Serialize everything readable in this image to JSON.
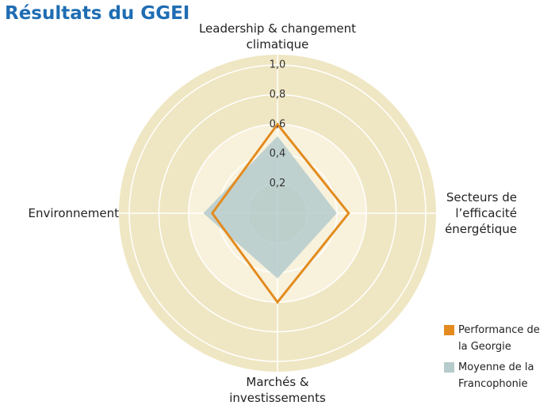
{
  "chart_data": {
    "type": "radar",
    "title": "Résultats du GGEI",
    "categories": [
      "Leadership & changement climatique",
      "Secteurs de l’efficacité énergétique",
      "Marchés & investissements",
      "Environnement"
    ],
    "series": [
      {
        "name": "Moyenne de la Francophonie",
        "color": "#b5cbcc",
        "values": [
          0.52,
          0.4,
          0.44,
          0.5
        ]
      },
      {
        "name": "Performance de la Georgie",
        "color": "#e38b1f",
        "values": [
          0.6,
          0.48,
          0.6,
          0.44
        ]
      }
    ],
    "rlim": [
      0,
      1
    ],
    "rticks": [
      {
        "value": 0.2,
        "label": "0,2"
      },
      {
        "value": 0.4,
        "label": "0,4"
      },
      {
        "value": 0.6,
        "label": "0,6"
      },
      {
        "value": 0.8,
        "label": "0,8"
      },
      {
        "value": 1,
        "label": "1,0"
      }
    ],
    "grid": true
  }
}
